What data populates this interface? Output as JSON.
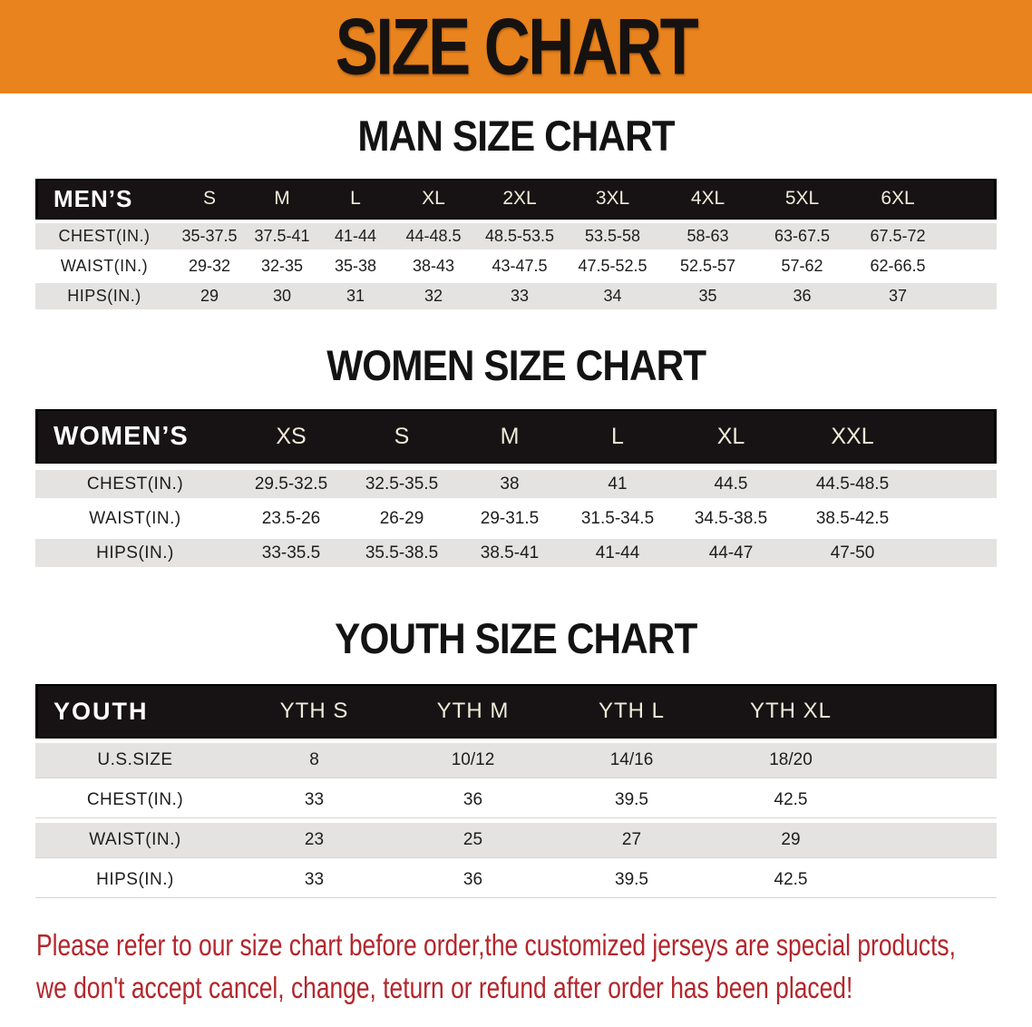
{
  "banner": {
    "title": "SIZE CHART"
  },
  "colors": {
    "orange": "#e8831d",
    "band": "#171314",
    "rowgray": "#e4e3e1",
    "red": "#b3262b"
  },
  "sections": [
    {
      "heading": "MAN SIZE CHART",
      "table": {
        "corner": "MEN’S",
        "columns": [
          "S",
          "M",
          "L",
          "XL",
          "2XL",
          "3XL",
          "4XL",
          "5XL",
          "6XL"
        ],
        "rows": [
          {
            "label": "CHEST(IN.)",
            "values": [
              "35-37.5",
              "37.5-41",
              "41-44",
              "44-48.5",
              "48.5-53.5",
              "53.5-58",
              "58-63",
              "63-67.5",
              "67.5-72"
            ]
          },
          {
            "label": "WAIST(IN.)",
            "values": [
              "29-32",
              "32-35",
              "35-38",
              "38-43",
              "43-47.5",
              "47.5-52.5",
              "52.5-57",
              "57-62",
              "62-66.5"
            ]
          },
          {
            "label": "HIPS(IN.)",
            "values": [
              "29",
              "30",
              "31",
              "32",
              "33",
              "34",
              "35",
              "36",
              "37"
            ]
          }
        ]
      }
    },
    {
      "heading": "WOMEN SIZE CHART",
      "table": {
        "corner": "WOMEN’S",
        "columns": [
          "XS",
          "S",
          "M",
          "L",
          "XL",
          "XXL"
        ],
        "rows": [
          {
            "label": "CHEST(IN.)",
            "values": [
              "29.5-32.5",
              "32.5-35.5",
              "38",
              "41",
              "44.5",
              "44.5-48.5"
            ]
          },
          {
            "label": "WAIST(IN.)",
            "values": [
              "23.5-26",
              "26-29",
              "29-31.5",
              "31.5-34.5",
              "34.5-38.5",
              "38.5-42.5"
            ]
          },
          {
            "label": "HIPS(IN.)",
            "values": [
              "33-35.5",
              "35.5-38.5",
              "38.5-41",
              "41-44",
              "44-47",
              "47-50"
            ]
          }
        ]
      }
    },
    {
      "heading": "YOUTH SIZE CHART",
      "table": {
        "corner": "YOUTH",
        "columns": [
          "YTH S",
          "YTH M",
          "YTH L",
          "YTH XL"
        ],
        "rows": [
          {
            "label": "U.S.SIZE",
            "values": [
              "8",
              "10/12",
              "14/16",
              "18/20"
            ]
          },
          {
            "label": "CHEST(IN.)",
            "values": [
              "33",
              "36",
              "39.5",
              "42.5"
            ]
          },
          {
            "label": "WAIST(IN.)",
            "values": [
              "23",
              "25",
              "27",
              "29"
            ]
          },
          {
            "label": "HIPS(IN.)",
            "values": [
              "33",
              "36",
              "39.5",
              "42.5"
            ]
          }
        ]
      }
    }
  ],
  "footer": {
    "lines": [
      "Please refer to our size chart before order,the customized jerseys are special products,",
      "we don't accept cancel, change, teturn or refund after order has been placed!"
    ]
  }
}
